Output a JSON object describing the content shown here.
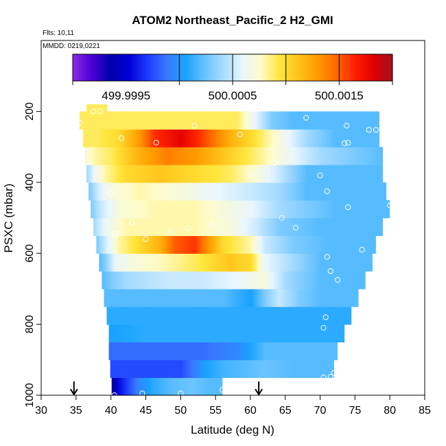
{
  "chart_data": {
    "type": "heatmap",
    "title": "ATOM2 Northeast_Pacific_2 H2_GMI",
    "notes": [
      "Flts: 10,11",
      "MMDD: 0219,0221"
    ],
    "xlabel": "Latitude (deg N)",
    "ylabel": "PSXC (mbar)",
    "xlim": [
      30,
      85
    ],
    "ylim": [
      1000,
      0
    ],
    "x_ticks": [
      30,
      35,
      40,
      45,
      50,
      55,
      60,
      65,
      70,
      75,
      80,
      85
    ],
    "y_ticks": [
      200,
      400,
      600,
      800,
      1000
    ],
    "grid": false,
    "colorbar": {
      "location": "top-inside",
      "range": [
        499.999,
        500.002
      ],
      "tick_labels": [
        "499.9995",
        "500.0005",
        "500.0015"
      ],
      "tick_values": [
        499.9995,
        500.0005,
        500.0015
      ],
      "separator_values": [
        500.0,
        500.0005,
        500.001,
        500.0015
      ],
      "colors": [
        "#8a2be2",
        "#4b00d8",
        "#0000a8",
        "#0000d6",
        "#1e3cff",
        "#3a78ff",
        "#1aa3ff",
        "#66c2ff",
        "#a8dcff",
        "#e8f6ff",
        "#fffbc8",
        "#ffe63c",
        "#ffc21a",
        "#ff9c00",
        "#ff6a00",
        "#ff2000",
        "#e00000",
        "#a01020"
      ]
    },
    "rows": [
      {
        "p": 975,
        "lat": [
          40.1,
          41.0,
          42.5,
          44.0,
          46.0,
          48.5,
          51.5,
          54.0,
          56.0
        ],
        "val": [
          499.99935,
          499.99955,
          499.99975,
          499.99995,
          500.0001,
          500.0002,
          500.00025,
          500.0002,
          500.0002
        ]
      },
      {
        "p": 925,
        "lat": [
          39.9,
          41.0,
          45.0,
          50.0,
          53.5,
          56.0,
          62.0,
          66.0,
          71.0,
          72.0
        ],
        "val": [
          499.99975,
          499.99975,
          499.99975,
          499.99975,
          500.00005,
          500.00015,
          500.00025,
          500.0002,
          500.0002,
          500.0002
        ]
      },
      {
        "p": 875,
        "lat": [
          39.7,
          42.0,
          47.0,
          53.0,
          58.0,
          60.5,
          62.0,
          66.0,
          72.5
        ],
        "val": [
          499.99985,
          499.99985,
          499.99985,
          499.99985,
          499.99995,
          500.0001,
          500.0002,
          500.0002,
          500.0002
        ]
      },
      {
        "p": 825,
        "lat": [
          39.7,
          45.0,
          50.0,
          58.0,
          65.0,
          70.0,
          73.5
        ],
        "val": [
          500.00005,
          500.0001,
          500.0001,
          500.0001,
          500.0001,
          500.0001,
          500.0001
        ]
      },
      {
        "p": 775,
        "lat": [
          39.4,
          45.0,
          55.0,
          62.0,
          68.0,
          74.5
        ],
        "val": [
          500.0001,
          500.0001,
          500.0001,
          500.0001,
          500.0001,
          500.0001
        ]
      },
      {
        "p": 725,
        "lat": [
          39.0,
          41.0,
          46.0,
          52.0,
          56.0,
          60.0,
          62.0,
          64.0,
          67.0,
          70.0,
          75.5
        ],
        "val": [
          500.0002,
          500.0002,
          500.0002,
          500.0002,
          500.0002,
          500.00005,
          500.0003,
          500.0005,
          500.0003,
          500.0002,
          500.0002
        ]
      },
      {
        "p": 675,
        "lat": [
          38.7,
          40.0,
          42.0,
          48.0,
          53.0,
          58.0,
          62.0,
          65.0,
          70.0,
          76.5
        ],
        "val": [
          500.0002,
          500.0003,
          500.0004,
          500.0005,
          500.0005,
          500.0006,
          500.0007,
          500.0004,
          500.0002,
          500.0002
        ]
      },
      {
        "p": 625,
        "lat": [
          38.3,
          39.0,
          40.5,
          43.0,
          48.0,
          52.0,
          57.0,
          60.0,
          62.0,
          66.0,
          70.0,
          77.5
        ],
        "val": [
          500.0002,
          500.0003,
          500.0006,
          500.0007,
          500.0008,
          500.0009,
          500.0011,
          500.001,
          500.0006,
          500.0004,
          500.0002,
          500.0002
        ]
      },
      {
        "p": 575,
        "lat": [
          37.9,
          39.0,
          41.0,
          44.0,
          47.0,
          49.0,
          52.0,
          56.0,
          60.0,
          62.0,
          66.0,
          71.0,
          78.0
        ],
        "val": [
          500.0003,
          500.0005,
          500.0008,
          500.001,
          500.0012,
          500.0015,
          500.0016,
          500.001,
          500.0008,
          500.0005,
          500.0003,
          500.0002,
          500.0002
        ]
      },
      {
        "p": 525,
        "lat": [
          37.5,
          39.0,
          42.0,
          46.0,
          52.0,
          57.0,
          61.0,
          64.0,
          70.0,
          79.0
        ],
        "val": [
          500.0004,
          500.0006,
          500.0008,
          500.0008,
          500.0008,
          500.0007,
          500.0005,
          500.0003,
          500.0002,
          500.0002
        ]
      },
      {
        "p": 475,
        "lat": [
          37.1,
          38.5,
          41.0,
          46.0,
          52.0,
          56.0,
          60.0,
          64.0,
          68.0,
          72.0,
          80.0
        ],
        "val": [
          500.0003,
          500.0005,
          500.0007,
          500.0008,
          500.0008,
          500.0007,
          500.0006,
          500.0004,
          500.0003,
          500.0002,
          500.0002
        ]
      },
      {
        "p": 425,
        "lat": [
          36.8,
          38.0,
          40.0,
          44.0,
          50.0,
          55.0,
          60.0,
          64.0,
          68.0,
          79.5
        ],
        "val": [
          500.0003,
          500.0005,
          500.0007,
          500.0008,
          500.0007,
          500.0006,
          500.0005,
          500.0004,
          500.0002,
          500.0002
        ]
      },
      {
        "p": 375,
        "lat": [
          36.5,
          37.5,
          39.0,
          42.0,
          47.0,
          52.0,
          57.0,
          61.0,
          64.0,
          68.0,
          79.0
        ],
        "val": [
          500.0004,
          500.0006,
          500.0008,
          500.001,
          500.0011,
          500.001,
          500.0009,
          500.0007,
          500.0005,
          500.0002,
          500.0002
        ]
      },
      {
        "p": 325,
        "lat": [
          36.3,
          37.5,
          40.0,
          44.0,
          48.0,
          52.0,
          56.0,
          60.0,
          64.0,
          70.0,
          79.0
        ],
        "val": [
          500.0007,
          500.0008,
          500.0009,
          500.0012,
          500.0014,
          500.0013,
          500.0011,
          500.0009,
          500.0007,
          500.0004,
          500.0002
        ]
      },
      {
        "p": 275,
        "lat": [
          36.0,
          38.0,
          41.0,
          44.0,
          46.0,
          50.0,
          54.0,
          57.0,
          60.0,
          64.0,
          68.0,
          72.0,
          78.5
        ],
        "val": [
          500.0009,
          500.0009,
          500.001,
          500.0013,
          500.0016,
          500.0018,
          500.0015,
          500.0012,
          500.001,
          500.0007,
          500.0004,
          500.0002,
          500.0002
        ]
      },
      {
        "p": 225,
        "lat": [
          35.5,
          38.0,
          42.0,
          48.0,
          54.0,
          58.0,
          60.5,
          63.0,
          66.0,
          70.0,
          78.5
        ],
        "val": [
          500.0009,
          500.0009,
          500.0009,
          500.0009,
          500.0009,
          500.0009,
          500.0006,
          500.0003,
          500.0002,
          500.0002,
          500.0002
        ]
      },
      {
        "p": 195,
        "lat": [
          36.5,
          38.0,
          39.5
        ],
        "val": [
          500.0009,
          500.0009,
          500.0009
        ]
      }
    ],
    "observations": [
      {
        "lat": 40.5,
        "p": 1000
      },
      {
        "lat": 44.5,
        "p": 995
      },
      {
        "lat": 50.0,
        "p": 995
      },
      {
        "lat": 56.0,
        "p": 985
      },
      {
        "lat": 70.5,
        "p": 950
      },
      {
        "lat": 71.5,
        "p": 948
      },
      {
        "lat": 72.0,
        "p": 937
      },
      {
        "lat": 70.5,
        "p": 810
      },
      {
        "lat": 70.8,
        "p": 780
      },
      {
        "lat": 72.5,
        "p": 675
      },
      {
        "lat": 71.5,
        "p": 650
      },
      {
        "lat": 71.0,
        "p": 610
      },
      {
        "lat": 76.0,
        "p": 590
      },
      {
        "lat": 79.0,
        "p": 565
      },
      {
        "lat": 40.5,
        "p": 545
      },
      {
        "lat": 45.0,
        "p": 560
      },
      {
        "lat": 48.5,
        "p": 540
      },
      {
        "lat": 51.0,
        "p": 530
      },
      {
        "lat": 54.5,
        "p": 522
      },
      {
        "lat": 66.5,
        "p": 528
      },
      {
        "lat": 64.5,
        "p": 500
      },
      {
        "lat": 43.0,
        "p": 512
      },
      {
        "lat": 74.0,
        "p": 470
      },
      {
        "lat": 80.0,
        "p": 465
      },
      {
        "lat": 40.0,
        "p": 430
      },
      {
        "lat": 71.0,
        "p": 425
      },
      {
        "lat": 70.0,
        "p": 380
      },
      {
        "lat": 60.0,
        "p": 380
      },
      {
        "lat": 63.5,
        "p": 345
      },
      {
        "lat": 46.5,
        "p": 288
      },
      {
        "lat": 41.5,
        "p": 275
      },
      {
        "lat": 58.5,
        "p": 265
      },
      {
        "lat": 73.5,
        "p": 290
      },
      {
        "lat": 74.0,
        "p": 288
      },
      {
        "lat": 52.0,
        "p": 240
      },
      {
        "lat": 73.8,
        "p": 240
      },
      {
        "lat": 77.0,
        "p": 252
      },
      {
        "lat": 78.0,
        "p": 252
      },
      {
        "lat": 68.0,
        "p": 218
      },
      {
        "lat": 35.5,
        "p": 232
      },
      {
        "lat": 37.5,
        "p": 200
      },
      {
        "lat": 38.5,
        "p": 200
      }
    ],
    "arrows": [
      34.7,
      61.2
    ]
  }
}
